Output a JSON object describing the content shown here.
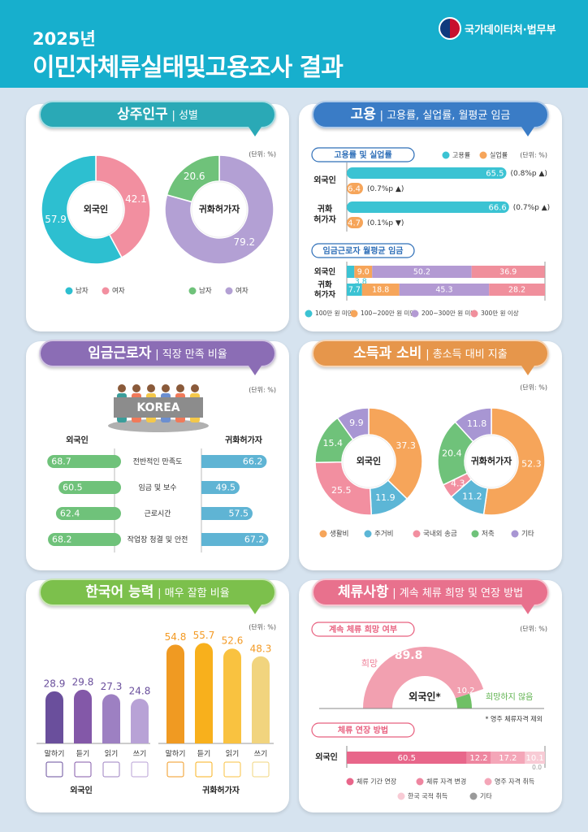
{
  "header": {
    "year": "2025년",
    "title": "이민자체류실태및고용조사 결과",
    "org": "국가데이터처·법무부"
  },
  "unit": "(단위: %)",
  "panels": {
    "population": {
      "title": "상주인구",
      "subtitle": "| 성별"
    },
    "employment": {
      "title": "고용",
      "subtitle": "| 고용률, 실업률, 월평균 임금",
      "sub1": "고용률 및 실업률",
      "sub2": "임금근로자 월평균 임금"
    },
    "satisfaction": {
      "title": "임금근로자",
      "subtitle": "| 직장 만족 비율",
      "banner": "KOREA"
    },
    "consumption": {
      "title": "소득과 소비",
      "subtitle": "| 총소득 대비 지출"
    },
    "korean": {
      "title": "한국어 능력",
      "subtitle": "| 매우 잘함 비율"
    },
    "stay": {
      "title": "체류사항",
      "subtitle": "| 계속 체류 희망 및 연장 방법",
      "sub1": "계속 체류 희망 여부",
      "sub2": "체류 연장 방법",
      "note": "* 영주 체류자격 제외"
    }
  },
  "colors": {
    "header": "#17afcd",
    "population": "#2aa9b6",
    "employment": "#3a7cc6",
    "satisfaction": "#8b6db5",
    "consumption": "#e6964b",
    "korean": "#7cc04c",
    "stay": "#e8718d"
  },
  "chart_data": [
    {
      "type": "pie",
      "categories": [
        "남자",
        "여자"
      ],
      "colors": [
        "#2dbfd0",
        "#f28fa0",
        "#6fc27a",
        "#b3a0d4"
      ],
      "series": [
        {
          "name": "외국인",
          "values": [
            57.9,
            42.1
          ]
        },
        {
          "name": "귀화허가자",
          "values": [
            20.6,
            79.2
          ]
        }
      ]
    },
    {
      "type": "bar",
      "orientation": "horizontal",
      "categories": [
        "외국인",
        "귀화허가자"
      ],
      "category_labels": [
        [
          "외국인"
        ],
        [
          "귀화",
          "허가자"
        ]
      ],
      "series": [
        {
          "name": "고용률",
          "color": "#3bc3d3",
          "values": [
            65.5,
            66.6
          ],
          "change": [
            {
              "value": "0.8",
              "unit": "%p",
              "dir": "up"
            },
            {
              "value": "0.7",
              "unit": "%p",
              "dir": "up"
            }
          ]
        },
        {
          "name": "실업률",
          "color": "#f6a55a",
          "values": [
            6.4,
            4.7
          ],
          "change": [
            {
              "value": "0.7",
              "unit": "%p",
              "dir": "up"
            },
            {
              "value": "0.1",
              "unit": "%p",
              "dir": "down"
            }
          ]
        }
      ]
    },
    {
      "type": "bar",
      "stacked": true,
      "orientation": "horizontal",
      "categories": [
        "외국인",
        "귀화허가자"
      ],
      "category_labels": [
        [
          "외국인"
        ],
        [
          "귀화",
          "허가자"
        ]
      ],
      "series": [
        {
          "name": "100만 원 미만",
          "color": "#3bc3d3",
          "values": [
            3.8,
            7.7
          ]
        },
        {
          "name": "100~200만 원 미만",
          "color": "#f6a55a",
          "values": [
            9.0,
            18.8
          ]
        },
        {
          "name": "200~300만 원 미만",
          "color": "#b39ad3",
          "values": [
            50.2,
            45.3
          ]
        },
        {
          "name": "300만 원 이상",
          "color": "#f08f9c",
          "values": [
            36.9,
            28.2
          ]
        }
      ]
    },
    {
      "type": "bar",
      "orientation": "diverging",
      "categories": [
        "전반적인 만족도",
        "임금 및 보수",
        "근로시간",
        "작업장 청결 및 안전"
      ],
      "series": [
        {
          "name": "외국인",
          "color": "#6fc27a",
          "values": [
            68.7,
            60.5,
            62.4,
            68.2
          ]
        },
        {
          "name": "귀화허가자",
          "color": "#5fb4d4",
          "values": [
            66.2,
            49.5,
            57.5,
            67.2
          ]
        }
      ]
    },
    {
      "type": "pie",
      "categories": [
        "생활비",
        "주거비",
        "국내외 송금",
        "저축",
        "기타"
      ],
      "colors": [
        "#f6a55a",
        "#5cb6d6",
        "#f28fa0",
        "#6fc27a",
        "#a896d3"
      ],
      "series": [
        {
          "name": "외국인",
          "values": [
            37.3,
            11.9,
            25.5,
            15.4,
            9.9
          ]
        },
        {
          "name": "귀화허가자",
          "values": [
            52.3,
            11.2,
            4.3,
            20.4,
            11.8
          ]
        }
      ]
    },
    {
      "type": "bar",
      "categories": [
        "말하기",
        "듣기",
        "읽기",
        "쓰기"
      ],
      "series": [
        {
          "name": "외국인",
          "colors": [
            "#6a4f9c",
            "#8358a8",
            "#9d80c2",
            "#b8a2d6"
          ],
          "label_color": "#6a4f9c",
          "values": [
            28.9,
            29.8,
            27.3,
            24.8
          ]
        },
        {
          "name": "귀화허가자",
          "colors": [
            "#f09a22",
            "#f8b01c",
            "#f9c240",
            "#f1d47e"
          ],
          "label_color": "#f39a24",
          "values": [
            54.8,
            55.7,
            52.6,
            48.3
          ]
        }
      ]
    },
    {
      "type": "pie",
      "half": true,
      "categories": [
        "희망",
        "희망하지 않음"
      ],
      "colors": [
        "#f2a0b0",
        "#6fc066"
      ],
      "series": [
        {
          "name": "외국인",
          "values": [
            89.8,
            10.2
          ]
        }
      ]
    },
    {
      "type": "bar",
      "stacked": true,
      "orientation": "horizontal",
      "categories": [
        "외국인"
      ],
      "series": [
        {
          "name": "체류 기간 연장",
          "color": "#e8668a",
          "values": [
            60.5
          ]
        },
        {
          "name": "체류 자격 변경",
          "color": "#ee86a0",
          "values": [
            12.2
          ]
        },
        {
          "name": "영주 자격 취득",
          "color": "#f4a6b8",
          "values": [
            17.2
          ]
        },
        {
          "name": "한국 국적 취득",
          "color": "#f8cbd5",
          "values": [
            10.1
          ]
        },
        {
          "name": "기타",
          "color": "#9a9a9a",
          "values": [
            0.0
          ]
        }
      ]
    }
  ]
}
